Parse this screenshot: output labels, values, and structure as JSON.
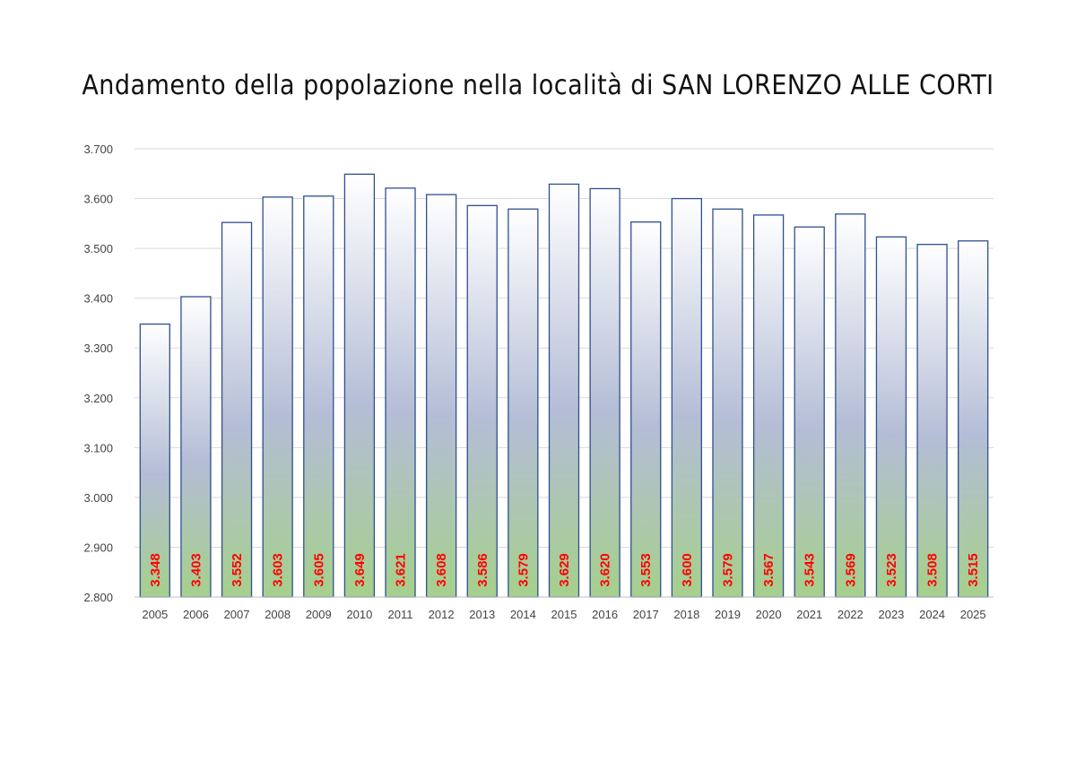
{
  "chart_data": {
    "type": "bar",
    "title": "Andamento della popolazione nella località di SAN LORENZO ALLE CORTI",
    "categories": [
      "2005",
      "2006",
      "2007",
      "2008",
      "2009",
      "2010",
      "2011",
      "2012",
      "2013",
      "2014",
      "2015",
      "2016",
      "2017",
      "2018",
      "2019",
      "2020",
      "2021",
      "2022",
      "2023",
      "2024",
      "2025"
    ],
    "values": [
      3348,
      3403,
      3552,
      3603,
      3605,
      3649,
      3621,
      3608,
      3586,
      3579,
      3629,
      3620,
      3553,
      3600,
      3579,
      3567,
      3543,
      3569,
      3523,
      3508,
      3515
    ],
    "value_labels": [
      "3.348",
      "3.403",
      "3.552",
      "3.603",
      "3.605",
      "3.649",
      "3.621",
      "3.608",
      "3.586",
      "3.579",
      "3.629",
      "3.620",
      "3.553",
      "3.600",
      "3.579",
      "3.567",
      "3.543",
      "3.569",
      "3.523",
      "3.508",
      "3.515"
    ],
    "y_ticks": [
      "2.800",
      "2.900",
      "3.000",
      "3.100",
      "3.200",
      "3.300",
      "3.400",
      "3.500",
      "3.600",
      "3.700"
    ],
    "ylim": [
      2800,
      3700
    ],
    "xlabel": "",
    "ylabel": "",
    "grid": true,
    "legend": "none",
    "colors": {
      "bar_border": "#2f4f8f",
      "bar_gradient_top": "#ffffff",
      "bar_gradient_mid": "#b4bdd6",
      "bar_gradient_bottom": "#a5d08c",
      "value_label": "#ff0000",
      "gridline": "#d9d9d9"
    }
  }
}
